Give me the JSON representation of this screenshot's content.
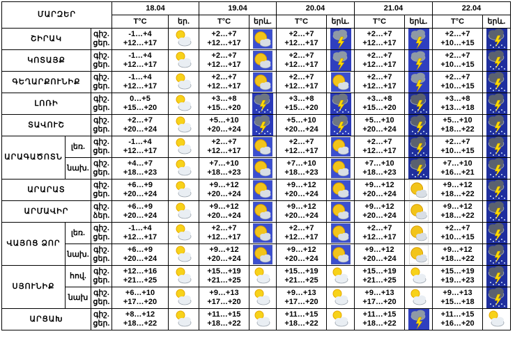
{
  "header": {
    "region_title": "ՄԱՐԶԵՐ",
    "dates": [
      "18.04",
      "19.04",
      "20.04",
      "21.04",
      "22.04"
    ],
    "temp_label": "T°C",
    "wx_label_short": "եր.",
    "wx_label": "երև."
  },
  "labels": {
    "night": "գիշ.",
    "day": "ցեր.",
    "day_alt": "ձեր."
  },
  "rows": [
    {
      "region": "ՇԻՐԱԿ",
      "sub": "",
      "label_day": "ցեր.",
      "days": [
        {
          "night": "-1…+4",
          "day": "+12…+17",
          "icon": "sun-cloud"
        },
        {
          "night": "+2…+7",
          "day": "+12…+17",
          "icon": "sun-cloud-small"
        },
        {
          "night": "+2…+7",
          "day": "+12…+17",
          "icon": "thunder"
        },
        {
          "night": "+2…+7",
          "day": "+12…+17",
          "icon": "thunder"
        },
        {
          "night": "+2…+7",
          "day": "+10…+15",
          "icon": "thunder-dark"
        }
      ]
    },
    {
      "region": "ԿՈՏԱՅՔ",
      "sub": "",
      "label_day": "ցեր.",
      "days": [
        {
          "night": "-1…+4",
          "day": "+12…+17",
          "icon": "sun-cloud"
        },
        {
          "night": "+2…+7",
          "day": "+12…+17",
          "icon": "sun-cloud-small"
        },
        {
          "night": "+2…+7",
          "day": "+12…+17",
          "icon": "thunder"
        },
        {
          "night": "+2…+7",
          "day": "+12…+17",
          "icon": "thunder"
        },
        {
          "night": "+2…+7",
          "day": "+10…+15",
          "icon": "thunder-dark"
        }
      ]
    },
    {
      "region": "ԳԵՂԱՐՔՈՒՆԻՔ",
      "sub": "",
      "label_day": "ցեր.",
      "days": [
        {
          "night": "-1…+4",
          "day": "+12…+17",
          "icon": "sun-cloud"
        },
        {
          "night": "+2…+7",
          "day": "+12…+17",
          "icon": "sun-cloud-small"
        },
        {
          "night": "+2…+7",
          "day": "+12…+17",
          "icon": "sun-cloud-small"
        },
        {
          "night": "+2…+7",
          "day": "+12…+17",
          "icon": "thunder"
        },
        {
          "night": "+2…+7",
          "day": "+10…+15",
          "icon": "thunder-dark"
        }
      ]
    },
    {
      "region": "ԼՈՌԻ",
      "sub": "",
      "label_day": "ցեր.",
      "days": [
        {
          "night": "0…+5",
          "day": "+15…+20",
          "icon": "sun-cloud"
        },
        {
          "night": "+3…+8",
          "day": "+15…+20",
          "icon": "thunder-rain"
        },
        {
          "night": "+3…+8",
          "day": "+15…+20",
          "icon": "thunder-rain"
        },
        {
          "night": "+3…+8",
          "day": "+15…+20",
          "icon": "thunder-dark"
        },
        {
          "night": "+3…+8",
          "day": "+13…+18",
          "icon": "thunder-dark"
        }
      ]
    },
    {
      "region": "ՏԱՎՈՒՇ",
      "sub": "",
      "label_day": "ցեր.",
      "days": [
        {
          "night": "+2…+7",
          "day": "+20…+24",
          "icon": "sun-cloud"
        },
        {
          "night": "+5…+10",
          "day": "+20…+24",
          "icon": "thunder-rain"
        },
        {
          "night": "+5…+10",
          "day": "+20…+24",
          "icon": "thunder-rain"
        },
        {
          "night": "+5…+10",
          "day": "+20…+24",
          "icon": "thunder-dark"
        },
        {
          "night": "+5…+10",
          "day": "+18…+22",
          "icon": "thunder-dark"
        }
      ]
    },
    {
      "region": "ԱՐԱԳԱԾՈՏՆ",
      "sub": "լեռ.",
      "label_day": "ցեր.",
      "days": [
        {
          "night": "-1…+4",
          "day": "+12…+17",
          "icon": "sun-cloud"
        },
        {
          "night": "+2…+7",
          "day": "+12…+17",
          "icon": "sun-cloud-small"
        },
        {
          "night": "+2…+7",
          "day": "+12…+17",
          "icon": "sun-cloud-small"
        },
        {
          "night": "+2…+7",
          "day": "+12…+17",
          "icon": "thunder-dark"
        },
        {
          "night": "+2…+7",
          "day": "+10…+15",
          "icon": "thunder-dark"
        }
      ]
    },
    {
      "region": "",
      "sub": "նախ.",
      "label_day": "ցեր.",
      "days": [
        {
          "night": "+4…+7",
          "day": "+18…+23",
          "icon": "sun-cloud"
        },
        {
          "night": "+7…+10",
          "day": "+18…+23",
          "icon": "sun-cloud-small"
        },
        {
          "night": "+7…+10",
          "day": "+18…+23",
          "icon": "sun-cloud-small"
        },
        {
          "night": "+7…+10",
          "day": "+18…+23",
          "icon": "thunder-dark"
        },
        {
          "night": "+7…+10",
          "day": "+16…+21",
          "icon": "thunder-dark"
        }
      ]
    },
    {
      "region": "ԱՐԱՐԱՏ",
      "sub": "",
      "label_day": "ցեր.",
      "days": [
        {
          "night": "+6…+9",
          "day": "+20…+24",
          "icon": "sun-cloud"
        },
        {
          "night": "+9…+12",
          "day": "+20…+24",
          "icon": "sun-cloud-small"
        },
        {
          "night": "+9…+12",
          "day": "+20…+24",
          "icon": "sun-cloud-small"
        },
        {
          "night": "+9…+12",
          "day": "+20…+24",
          "icon": "sun-cloud-plain"
        },
        {
          "night": "+9…+12",
          "day": "+18…+22",
          "icon": "thunder-dark"
        }
      ]
    },
    {
      "region": "ԱՐՄԱՎԻՐ",
      "sub": "",
      "label_day": "ձեր.",
      "days": [
        {
          "night": "+6…+9",
          "day": "+20…+24",
          "icon": "sun-cloud"
        },
        {
          "night": "+9…+12",
          "day": "+20…+24",
          "icon": "sun-cloud-small"
        },
        {
          "night": "+9…+12",
          "day": "+20…+24",
          "icon": "sun-cloud-small"
        },
        {
          "night": "+9…+12",
          "day": "+20…+24",
          "icon": "sun-cloud-plain"
        },
        {
          "night": "+9…+12",
          "day": "+18…+22",
          "icon": "thunder-dark"
        }
      ]
    },
    {
      "region": "ՎԱՅՈՑ ՁՈՐ",
      "sub": "լեռ.",
      "label_day": "ցեր.",
      "days": [
        {
          "night": "-1…+4",
          "day": "+12…+17",
          "icon": "sun-cloud"
        },
        {
          "night": "+2…+7",
          "day": "+12…+17",
          "icon": "sun-cloud-small"
        },
        {
          "night": "+2…+7",
          "day": "+12…+17",
          "icon": "sun-cloud-small"
        },
        {
          "night": "+2…+7",
          "day": "+12…+17",
          "icon": "sun-cloud-plain"
        },
        {
          "night": "+2…+7",
          "day": "+10…+15",
          "icon": "thunder-dark"
        }
      ]
    },
    {
      "region": "",
      "sub": "նախ.",
      "label_day": "ցեր.",
      "days": [
        {
          "night": "+6…+9",
          "day": "+20…+24",
          "icon": "sun-cloud"
        },
        {
          "night": "+9…+12",
          "day": "+20…+24",
          "icon": "sun-cloud-small"
        },
        {
          "night": "+9…+12",
          "day": "+20…+24",
          "icon": "sun-cloud-small"
        },
        {
          "night": "+9…+12",
          "day": "+20…+24",
          "icon": "sun-cloud-plain"
        },
        {
          "night": "+9…+12",
          "day": "+18…+22",
          "icon": "thunder-dark"
        }
      ]
    },
    {
      "region": "ՍՅՈՒՆԻՔ",
      "sub": "հով.",
      "label_day": "ցեր.",
      "days": [
        {
          "night": "+12…+16",
          "day": "+21…+25",
          "icon": "sun-cloud"
        },
        {
          "night": "+15…+19",
          "day": "+21…+25",
          "icon": "sun-cloud"
        },
        {
          "night": "+15…+19",
          "day": "+21…+25",
          "icon": "sun-cloud"
        },
        {
          "night": "+15…+19",
          "day": "+21…+25",
          "icon": "sun-cloud"
        },
        {
          "night": "+15…+19",
          "day": "+19…+23",
          "icon": "thunder-dark"
        }
      ]
    },
    {
      "region": "",
      "sub": "նախ",
      "label_day": "ցեր.",
      "days": [
        {
          "night": "+6…+10",
          "day": "+17…+20",
          "icon": "sun-cloud"
        },
        {
          "night": "+9…+13",
          "day": "+17…+20",
          "icon": "sun-cloud"
        },
        {
          "night": "+9…+13",
          "day": "+17…+20",
          "icon": "sun-cloud"
        },
        {
          "night": "+9…+13",
          "day": "+17…+20",
          "icon": "sun-cloud"
        },
        {
          "night": "+9…+13",
          "day": "+15…+18",
          "icon": "thunder-dark"
        }
      ]
    },
    {
      "region": "ԱՐՑԱԽ",
      "sub": "",
      "label_day": "ցեր.",
      "days": [
        {
          "night": "+8…+12",
          "day": "+18…+22",
          "icon": "sun-cloud"
        },
        {
          "night": "+11…+15",
          "day": "+18…+22",
          "icon": "sun-cloud"
        },
        {
          "night": "+11…+15",
          "day": "+18…+22",
          "icon": "sun-cloud"
        },
        {
          "night": "+11…+15",
          "day": "+18…+22",
          "icon": "thunder"
        },
        {
          "night": "+11…+15",
          "day": "+16…+20",
          "icon": "sun-cloud"
        }
      ]
    }
  ],
  "icon_types": [
    "sun-cloud",
    "sun-cloud-small",
    "sun-cloud-plain",
    "thunder",
    "thunder-rain",
    "thunder-dark"
  ]
}
